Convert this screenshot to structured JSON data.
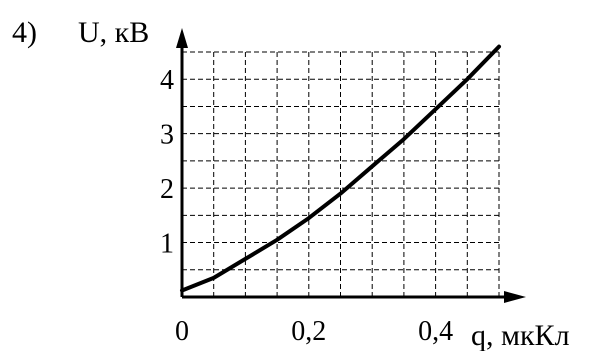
{
  "panel_label": "4)",
  "chart_data": {
    "type": "line",
    "title": "",
    "xlabel": "q, мкКл",
    "ylabel": "U, кВ",
    "x_ticks": [
      {
        "value": 0,
        "label": "0"
      },
      {
        "value": 0.2,
        "label": "0,2"
      },
      {
        "value": 0.4,
        "label": "0,4"
      }
    ],
    "y_ticks": [
      {
        "value": 1,
        "label": "1"
      },
      {
        "value": 2,
        "label": "2"
      },
      {
        "value": 3,
        "label": "3"
      },
      {
        "value": 4,
        "label": "4"
      }
    ],
    "grid": true,
    "x_grid_step": 0.05,
    "y_grid_step": 0.5,
    "xlim": [
      0,
      0.5
    ],
    "ylim": [
      0,
      4.5
    ],
    "series": [
      {
        "x": [
          0,
          0.05,
          0.1,
          0.15,
          0.2,
          0.25,
          0.3,
          0.35,
          0.4,
          0.45,
          0.5
        ],
        "y": [
          0.12,
          0.35,
          0.7,
          1.05,
          1.45,
          1.9,
          2.4,
          2.9,
          3.45,
          4.0,
          4.6
        ]
      }
    ]
  }
}
